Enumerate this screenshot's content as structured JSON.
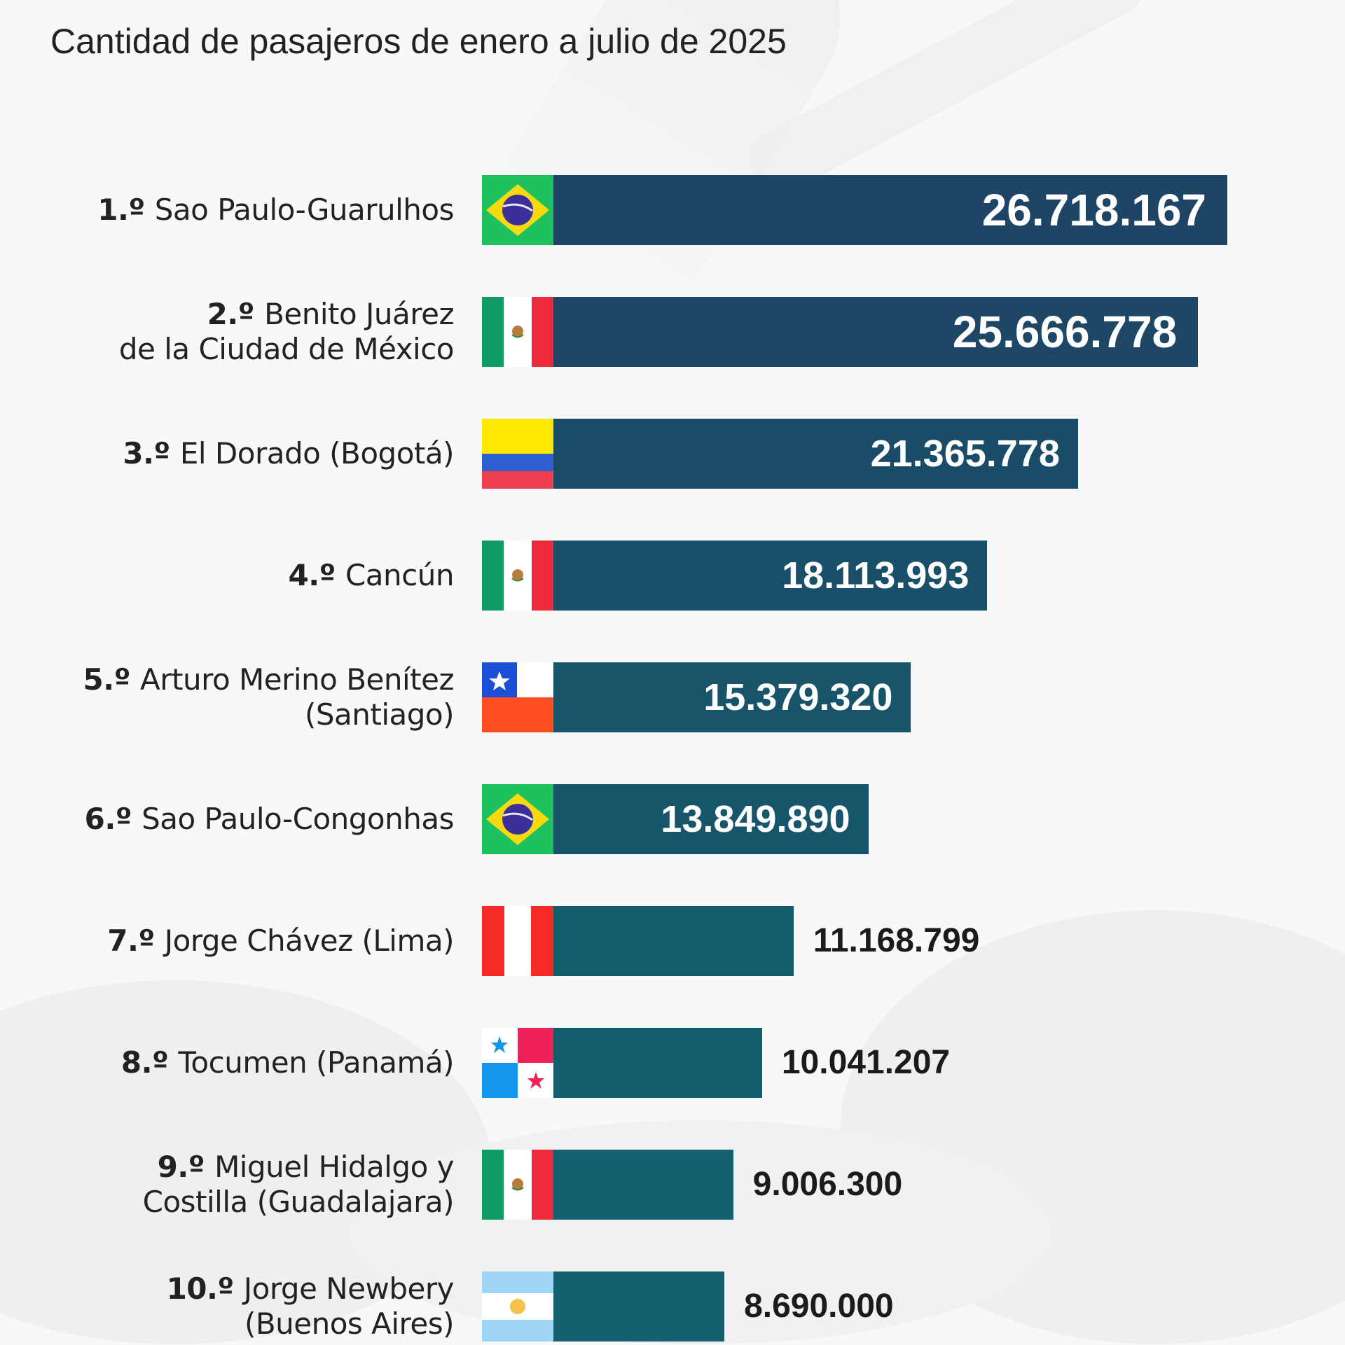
{
  "chart_data": {
    "type": "bar",
    "orientation": "horizontal",
    "title": "Cantidad de pasajeros de enero a julio de 2025",
    "xlabel": "",
    "ylabel": "",
    "xlim": [
      0,
      26718167
    ],
    "grid": false,
    "legend": "none",
    "categories": [
      {
        "rank": "1.º",
        "name_lines": [
          "Sao Paulo-Guarulhos"
        ],
        "country": "brazil"
      },
      {
        "rank": "2.º",
        "name_lines": [
          "Benito Juárez",
          "de la Ciudad de México"
        ],
        "country": "mexico"
      },
      {
        "rank": "3.º",
        "name_lines": [
          "El Dorado (Bogotá)"
        ],
        "country": "colombia"
      },
      {
        "rank": "4.º",
        "name_lines": [
          "Cancún"
        ],
        "country": "mexico"
      },
      {
        "rank": "5.º",
        "name_lines": [
          "Arturo Merino Benítez",
          "(Santiago)"
        ],
        "country": "chile"
      },
      {
        "rank": "6.º",
        "name_lines": [
          "Sao Paulo-Congonhas"
        ],
        "country": "brazil"
      },
      {
        "rank": "7.º",
        "name_lines": [
          "Jorge Chávez (Lima)"
        ],
        "country": "peru"
      },
      {
        "rank": "8.º",
        "name_lines": [
          "Tocumen (Panamá)"
        ],
        "country": "panama"
      },
      {
        "rank": "9.º",
        "name_lines": [
          "Miguel Hidalgo y",
          "Costilla (Guadalajara)"
        ],
        "country": "mexico"
      },
      {
        "rank": "10.º",
        "name_lines": [
          "Jorge Newbery",
          "(Buenos Aires)"
        ],
        "country": "argentina"
      }
    ],
    "values": [
      26718167,
      25666778,
      21365778,
      18113993,
      15379320,
      13849890,
      11168799,
      10041207,
      9006300,
      8690000
    ],
    "value_labels": [
      "26.718.167",
      "25.666.778",
      "21.365.778",
      "18.113.993",
      "15.379.320",
      "13.849.890",
      "11.168.799",
      "10.041.207",
      "9.006.300",
      "8.690.000"
    ],
    "bar_colors": [
      "#1f4566",
      "#1e4766",
      "#1b4c67",
      "#194f68",
      "#185469",
      "#17566a",
      "#135c6c",
      "#135e6d",
      "#13606e",
      "#13616e"
    ]
  }
}
